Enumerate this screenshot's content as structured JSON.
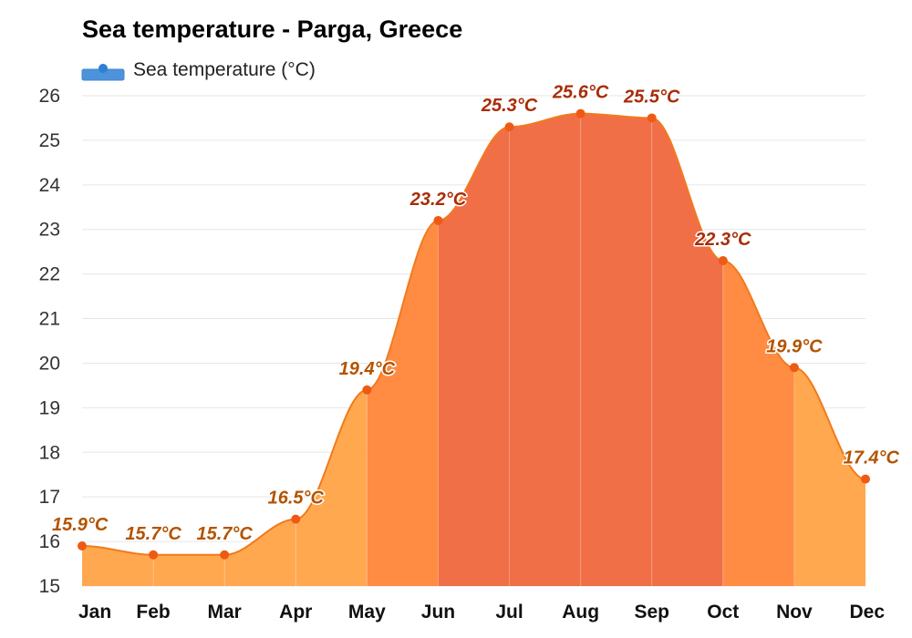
{
  "chart_data": {
    "type": "area",
    "title": "Sea temperature - Parga, Greece",
    "legend": {
      "label": "Sea temperature (°C)",
      "color": "#3a86d1",
      "position": "top-left"
    },
    "categories": [
      "Jan",
      "Feb",
      "Mar",
      "Apr",
      "May",
      "Jun",
      "Jul",
      "Aug",
      "Sep",
      "Oct",
      "Nov",
      "Dec"
    ],
    "series": [
      {
        "name": "Sea temperature (°C)",
        "values": [
          15.9,
          15.7,
          15.7,
          16.5,
          19.4,
          23.2,
          25.3,
          25.6,
          25.5,
          22.3,
          19.9,
          17.4
        ],
        "labels": [
          "15.9°C",
          "15.7°C",
          "15.7°C",
          "16.5°C",
          "19.4°C",
          "23.2°C",
          "25.3°C",
          "25.6°C",
          "25.5°C",
          "22.3°C",
          "19.9°C",
          "17.4°C"
        ]
      }
    ],
    "ylim": [
      15,
      26
    ],
    "yticks": [
      "15",
      "16",
      "17",
      "18",
      "19",
      "20",
      "21",
      "22",
      "23",
      "24",
      "25",
      "26"
    ],
    "grid": true,
    "colors": {
      "cool": "#ffa84f",
      "mild": "#ff8c42",
      "warm": "#f06f47",
      "point": "#ee5a14",
      "line": "#f27a1c",
      "label_cool": "#b35400",
      "label_warm": "#a82d07"
    }
  }
}
